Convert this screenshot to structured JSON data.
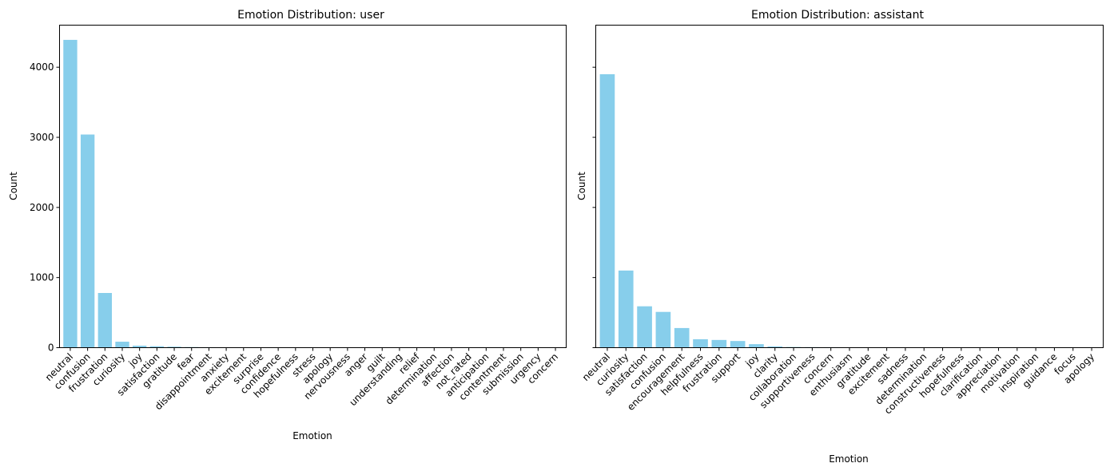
{
  "chart_data": [
    {
      "type": "bar",
      "title": "Emotion Distribution: user",
      "xlabel": "Emotion",
      "ylabel": "Count",
      "ylim": [
        0,
        4600
      ],
      "yticks": [
        0,
        1000,
        2000,
        3000,
        4000
      ],
      "grid": false,
      "legend": "none",
      "color": "#87ceeb",
      "categories": [
        "neutral",
        "confusion",
        "frustration",
        "curiosity",
        "joy",
        "satisfaction",
        "gratitude",
        "fear",
        "disappointment",
        "anxiety",
        "excitement",
        "surprise",
        "confidence",
        "hopefulness",
        "stress",
        "apology",
        "nervousness",
        "anger",
        "guilt",
        "understanding",
        "relief",
        "determination",
        "affection",
        "not_rated",
        "anticipation",
        "contentment",
        "submission",
        "urgency",
        "concern"
      ],
      "values": [
        4390,
        3040,
        780,
        85,
        28,
        20,
        14,
        9,
        7,
        6,
        5,
        4,
        4,
        3,
        3,
        3,
        2,
        2,
        2,
        2,
        2,
        2,
        1,
        1,
        1,
        1,
        1,
        1,
        1
      ]
    },
    {
      "type": "bar",
      "title": "Emotion Distribution: assistant",
      "xlabel": "Emotion",
      "ylabel": "Count",
      "ylim": [
        0,
        4600
      ],
      "yticks": [
        0,
        1000,
        2000,
        3000,
        4000
      ],
      "grid": false,
      "legend": "none",
      "color": "#87ceeb",
      "categories": [
        "neutral",
        "curiosity",
        "satisfaction",
        "confusion",
        "encouragement",
        "helpfulness",
        "frustration",
        "support",
        "joy",
        "clarity",
        "collaboration",
        "supportiveness",
        "concern",
        "enthusiasm",
        "gratitude",
        "excitement",
        "sadness",
        "determination",
        "constructiveness",
        "hopefulness",
        "clarification",
        "appreciation",
        "motivation",
        "inspiration",
        "guidance",
        "focus",
        "apology"
      ],
      "values": [
        3900,
        1100,
        590,
        510,
        280,
        120,
        110,
        95,
        50,
        18,
        10,
        8,
        7,
        6,
        5,
        5,
        4,
        4,
        3,
        3,
        3,
        2,
        2,
        2,
        2,
        1,
        1
      ]
    }
  ]
}
